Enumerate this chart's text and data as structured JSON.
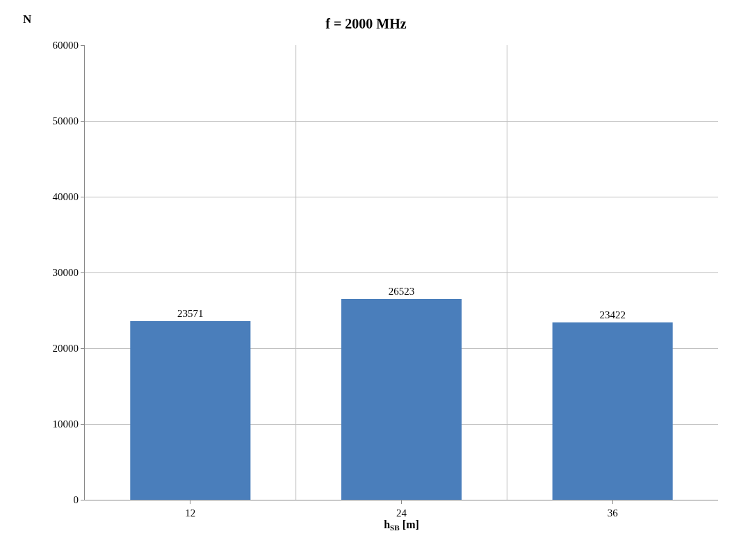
{
  "chart_data": {
    "type": "bar",
    "title": "f = 2000 MHz",
    "xlabel": "h$_{SB}$ [m]",
    "ylabel": "N",
    "categories": [
      "12",
      "24",
      "36"
    ],
    "values": [
      23571,
      26523,
      23422
    ],
    "color": "#4a7ebb",
    "ylim": [
      0,
      60000
    ],
    "yticks": [
      0,
      10000,
      20000,
      30000,
      40000,
      50000,
      60000
    ],
    "grid": true,
    "data_labels": true
  }
}
